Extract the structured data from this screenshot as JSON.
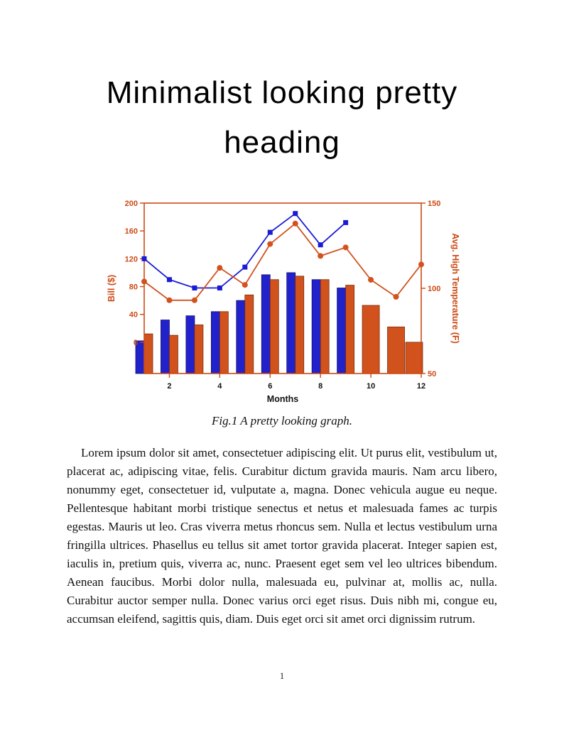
{
  "doc": {
    "heading": "Minimalist looking pretty heading",
    "caption": "Fig.1 A pretty looking graph.",
    "body": "Lorem ipsum dolor sit amet, consectetuer adipiscing elit. Ut purus elit, vestibulum ut, placerat ac, adipiscing vitae, felis. Curabitur dictum gravida mauris. Nam arcu libero, nonummy eget, consectetuer id, vulputate a, magna. Donec vehicula augue eu neque. Pellentesque habitant morbi tristique senectus et netus et malesuada fames ac turpis egestas. Mauris ut leo. Cras viverra metus rhoncus sem. Nulla et lectus vestibulum urna fringilla ultrices. Phasellus eu tellus sit amet tortor gravida placerat. Integer sapien est, iaculis in, pretium quis, viverra ac, nunc. Praesent eget sem vel leo ultrices bibendum. Aenean faucibus. Morbi dolor nulla, malesuada eu, pulvinar at, mollis ac, nulla. Curabitur auctor semper nulla. Donec varius orci eget risus. Duis nibh mi, congue eu, accumsan eleifend, sagittis quis, diam. Duis eget orci sit amet orci dignissim rutrum.",
    "page_number": "1"
  },
  "chart_data": {
    "type": "bar",
    "description": "Grouped monthly bars with two overlaid marker line series on dual y-axes",
    "xlabel": "Months",
    "x_ticks": [
      2,
      4,
      6,
      8,
      10,
      12
    ],
    "x_range": [
      1,
      12
    ],
    "grid": false,
    "legend": "none",
    "left_axis": {
      "label": "Bill ($)",
      "ticks": [
        0,
        40,
        80,
        120,
        160,
        200
      ],
      "range": [
        -45,
        200
      ],
      "color": "#cc4a14"
    },
    "right_axis": {
      "label": "Avg. High Temperature (F)",
      "ticks": [
        50,
        100,
        150
      ],
      "range": [
        50,
        150
      ],
      "color": "#cc4a14"
    },
    "series": [
      {
        "name": "blue-bars",
        "type": "bar",
        "axis": "left",
        "color": "#2222cc",
        "edge": "#10106a",
        "months": [
          1,
          2,
          3,
          4,
          5,
          6,
          7,
          8,
          9
        ],
        "values": [
          2,
          32,
          38,
          44,
          60,
          97,
          100,
          90,
          78
        ]
      },
      {
        "name": "orange-bars",
        "type": "bar",
        "axis": "left",
        "color": "#d2521e",
        "edge": "#7a2c0c",
        "months": [
          1,
          2,
          3,
          4,
          5,
          6,
          7,
          8,
          9,
          10,
          11,
          12
        ],
        "values": [
          12,
          10,
          25,
          44,
          68,
          90,
          95,
          90,
          82,
          53,
          22,
          0
        ]
      },
      {
        "name": "blue-line",
        "type": "line",
        "marker": "square",
        "axis": "left",
        "color": "#1b1bd4",
        "months": [
          1,
          2,
          3,
          4,
          5,
          6,
          7,
          8,
          9
        ],
        "values": [
          120,
          90,
          78,
          78,
          108,
          158,
          185,
          140,
          172
        ]
      },
      {
        "name": "orange-line",
        "type": "line",
        "marker": "circle",
        "axis": "right",
        "color": "#d2521e",
        "months": [
          1,
          2,
          3,
          4,
          5,
          6,
          7,
          8,
          9,
          10,
          11,
          12
        ],
        "values": [
          104,
          93,
          93,
          112,
          102,
          126,
          138,
          119,
          124,
          105,
          95,
          114
        ]
      }
    ]
  }
}
